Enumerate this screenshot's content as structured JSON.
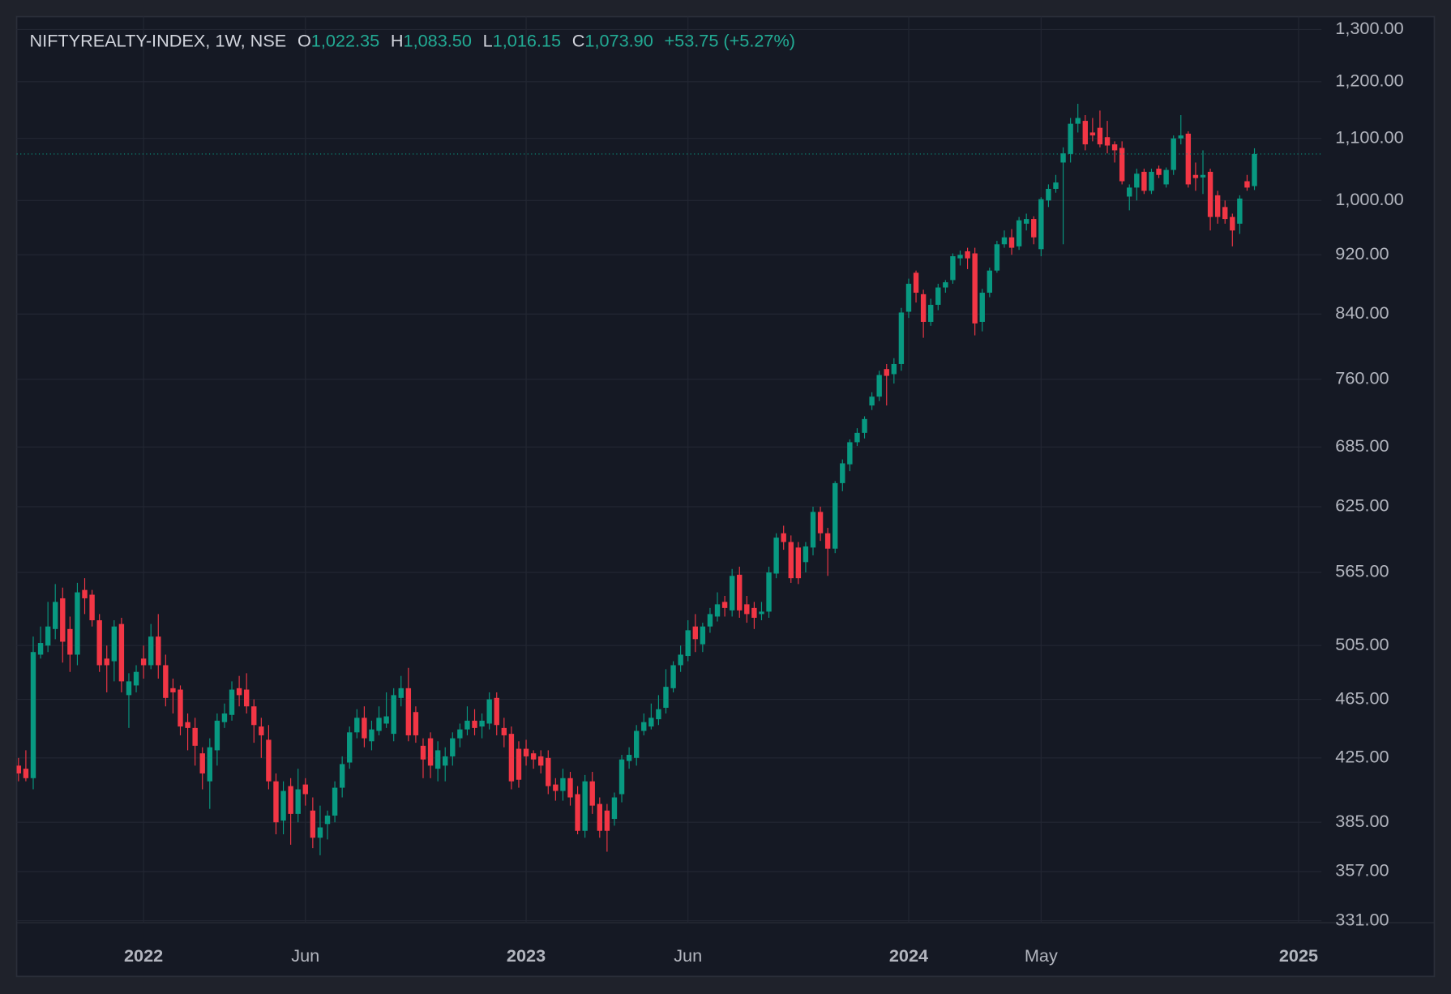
{
  "chart_data": {
    "type": "candlestick",
    "symbol": "NIFTYREALTY-INDEX, 1W, NSE",
    "ohlc": [
      {
        "label": "O",
        "value": "1,022.35"
      },
      {
        "label": "H",
        "value": "1,083.50"
      },
      {
        "label": "L",
        "value": "1,016.15"
      },
      {
        "label": "C",
        "value": "1,073.90"
      }
    ],
    "change": "+53.75 (+5.27%)",
    "up_color": "#089981",
    "down_color": "#f23645",
    "log_scale": true,
    "grid": true,
    "ylim": [
      330,
      1326
    ],
    "yticks": [
      {
        "value": 331,
        "label": "331.00"
      },
      {
        "value": 357,
        "label": "357.00"
      },
      {
        "value": 385,
        "label": "385.00"
      },
      {
        "value": 425,
        "label": "425.00"
      },
      {
        "value": 465,
        "label": "465.00"
      },
      {
        "value": 505,
        "label": "505.00"
      },
      {
        "value": 565,
        "label": "565.00"
      },
      {
        "value": 625,
        "label": "625.00"
      },
      {
        "value": 685,
        "label": "685.00"
      },
      {
        "value": 760,
        "label": "760.00"
      },
      {
        "value": 840,
        "label": "840.00"
      },
      {
        "value": 920,
        "label": "920.00"
      },
      {
        "value": 1000,
        "label": "1,000.00"
      },
      {
        "value": 1100,
        "label": "1,100.00"
      },
      {
        "value": 1200,
        "label": "1,200.00"
      },
      {
        "value": 1300,
        "label": "1,300.00"
      }
    ],
    "categories": [
      null,
      null,
      null,
      null,
      null,
      null,
      null,
      null,
      null,
      null,
      null,
      null,
      null,
      null,
      null,
      null,
      null,
      "2022",
      null,
      null,
      null,
      null,
      null,
      null,
      null,
      null,
      null,
      null,
      null,
      null,
      null,
      null,
      null,
      null,
      null,
      null,
      null,
      null,
      null,
      "Jun",
      null,
      null,
      null,
      null,
      null,
      null,
      null,
      null,
      null,
      null,
      null,
      null,
      null,
      null,
      null,
      null,
      null,
      null,
      null,
      null,
      null,
      null,
      null,
      null,
      null,
      null,
      null,
      null,
      null,
      "2023",
      null,
      null,
      null,
      null,
      null,
      null,
      null,
      null,
      null,
      null,
      null,
      null,
      null,
      null,
      null,
      null,
      null,
      null,
      null,
      null,
      null,
      "Jun",
      null,
      null,
      null,
      null,
      null,
      null,
      null,
      null,
      null,
      null,
      null,
      null,
      null,
      null,
      null,
      null,
      null,
      null,
      null,
      null,
      null,
      null,
      null,
      null,
      null,
      null,
      null,
      null,
      null,
      "2024",
      null,
      null,
      null,
      null,
      null,
      null,
      null,
      null,
      null,
      null,
      null,
      null,
      null,
      null,
      null,
      null,
      null,
      "May",
      null,
      null,
      null,
      null,
      null,
      null,
      null,
      null,
      null,
      null,
      null,
      null,
      null,
      null,
      null,
      null,
      null,
      null,
      null,
      null,
      null,
      null,
      null,
      null,
      null,
      null,
      null,
      null,
      null,
      null,
      null,
      null,
      null,
      null,
      "2025",
      null,
      null,
      null
    ],
    "open": [
      420,
      418,
      412,
      498,
      505,
      518,
      543,
      518,
      498,
      550,
      546,
      525,
      495,
      493,
      522,
      468,
      475,
      495,
      490,
      512,
      490,
      473,
      472,
      449,
      445,
      428,
      410,
      430,
      449,
      454,
      473,
      472,
      460,
      446,
      437,
      410,
      386,
      407,
      390,
      408,
      392,
      376,
      384,
      389,
      406,
      422,
      442,
      452,
      436,
      443,
      448,
      441,
      466,
      473,
      456,
      433,
      438,
      418,
      420,
      426,
      438,
      444,
      450,
      446,
      448,
      466,
      445,
      441,
      431,
      431,
      428,
      426,
      425,
      408,
      404,
      412,
      402,
      380,
      410,
      396,
      392,
      387,
      402,
      423,
      425,
      443,
      446,
      451,
      459,
      473,
      490,
      497,
      520,
      506,
      520,
      528,
      540,
      533,
      563,
      538,
      535,
      530,
      532,
      564,
      600,
      592,
      587,
      574,
      587,
      620,
      600,
      586,
      648,
      667,
      690,
      700,
      730,
      740,
      772,
      766,
      778,
      843,
      895,
      866,
      830,
      852,
      875,
      885,
      915,
      925,
      922,
      830,
      868,
      898,
      935,
      945,
      932,
      965,
      972,
      928,
      1000,
      1018,
      1060,
      1074,
      1125,
      1130,
      1110,
      1118,
      1102,
      1090,
      1084,
      1006,
      1020,
      1045,
      1015,
      1050,
      1025,
      1048,
      1100,
      1108,
      1040,
      1036,
      1045,
      1008,
      990,
      975,
      965,
      1030,
      1022.35,
      null,
      null,
      null,
      null,
      null,
      null,
      null,
      null,
      null
    ],
    "high": [
      425,
      430,
      512,
      520,
      540,
      555,
      552,
      528,
      556,
      560,
      550,
      530,
      505,
      525,
      527,
      484,
      490,
      505,
      522,
      530,
      498,
      480,
      475,
      455,
      452,
      432,
      438,
      455,
      462,
      478,
      482,
      484,
      465,
      452,
      447,
      415,
      410,
      412,
      418,
      412,
      400,
      395,
      392,
      410,
      426,
      446,
      458,
      460,
      450,
      460,
      470,
      473,
      482,
      488,
      460,
      438,
      442,
      436,
      432,
      442,
      448,
      460,
      458,
      455,
      470,
      470,
      452,
      446,
      436,
      437,
      430,
      430,
      430,
      412,
      418,
      416,
      407,
      414,
      416,
      400,
      396,
      403,
      427,
      432,
      447,
      455,
      462,
      468,
      487,
      493,
      505,
      525,
      530,
      523,
      535,
      548,
      545,
      568,
      570,
      545,
      540,
      540,
      570,
      600,
      607,
      598,
      592,
      592,
      625,
      625,
      605,
      650,
      672,
      693,
      705,
      718,
      745,
      770,
      778,
      785,
      848,
      887,
      898,
      872,
      860,
      880,
      885,
      922,
      926,
      930,
      930,
      873,
      902,
      940,
      955,
      957,
      975,
      980,
      976,
      1005,
      1025,
      1040,
      1085,
      1135,
      1160,
      1140,
      1135,
      1148,
      1130,
      1095,
      1095,
      1025,
      1050,
      1050,
      1050,
      1055,
      1052,
      1105,
      1140,
      1112,
      1060,
      1080,
      1050,
      1015,
      1000,
      980,
      1008,
      1040,
      1083.5,
      null,
      null,
      null,
      null,
      null,
      null,
      null,
      null,
      null
    ],
    "low": [
      410,
      410,
      405,
      495,
      500,
      510,
      492,
      485,
      490,
      530,
      520,
      485,
      470,
      478,
      470,
      445,
      470,
      480,
      487,
      480,
      460,
      455,
      440,
      430,
      420,
      405,
      393,
      420,
      445,
      450,
      460,
      455,
      435,
      425,
      405,
      378,
      378,
      372,
      385,
      395,
      370,
      366,
      375,
      385,
      400,
      418,
      438,
      432,
      430,
      440,
      445,
      436,
      460,
      436,
      435,
      412,
      412,
      410,
      410,
      420,
      432,
      440,
      440,
      438,
      444,
      440,
      432,
      405,
      406,
      420,
      418,
      415,
      402,
      398,
      398,
      395,
      378,
      376,
      390,
      376,
      368,
      383,
      397,
      418,
      420,
      440,
      444,
      447,
      455,
      470,
      485,
      493,
      500,
      500,
      515,
      524,
      528,
      528,
      527,
      523,
      518,
      525,
      527,
      560,
      585,
      556,
      555,
      565,
      580,
      593,
      562,
      582,
      640,
      660,
      686,
      694,
      725,
      735,
      730,
      755,
      770,
      835,
      855,
      810,
      825,
      845,
      868,
      880,
      905,
      900,
      813,
      818,
      862,
      895,
      930,
      920,
      927,
      955,
      935,
      918,
      990,
      1012,
      935,
      1060,
      1110,
      1080,
      1095,
      1085,
      1075,
      1060,
      1025,
      985,
      1000,
      1010,
      1010,
      1035,
      1020,
      1040,
      1090,
      1020,
      1015,
      1010,
      955,
      965,
      965,
      932,
      950,
      1015,
      1016.15,
      null,
      null,
      null,
      null,
      null,
      null,
      null,
      null,
      null
    ],
    "close": [
      415,
      412,
      500,
      507,
      520,
      540,
      508,
      498,
      548,
      543,
      525,
      490,
      490,
      520,
      478,
      478,
      485,
      490,
      512,
      490,
      466,
      470,
      446,
      445,
      433,
      415,
      432,
      450,
      455,
      472,
      468,
      460,
      447,
      440,
      410,
      385,
      404,
      390,
      405,
      402,
      376,
      382,
      389,
      406,
      421,
      442,
      452,
      438,
      444,
      452,
      453,
      468,
      473,
      440,
      440,
      424,
      420,
      430,
      426,
      438,
      444,
      450,
      445,
      450,
      465,
      447,
      440,
      410,
      411,
      426,
      424,
      420,
      407,
      404,
      412,
      400,
      380,
      410,
      395,
      380,
      380,
      400,
      424,
      427,
      443,
      449,
      452,
      458,
      474,
      490,
      498,
      517,
      510,
      520,
      530,
      538,
      535,
      562,
      533,
      530,
      527,
      532,
      565,
      596,
      592,
      560,
      560,
      588,
      620,
      600,
      586,
      648,
      668,
      690,
      700,
      715,
      740,
      765,
      764,
      778,
      842,
      880,
      868,
      830,
      852,
      875,
      882,
      918,
      920,
      915,
      828,
      868,
      898,
      935,
      945,
      930,
      970,
      972,
      945,
      1002,
      1018,
      1028,
      1075,
      1125,
      1135,
      1090,
      1105,
      1090,
      1088,
      1080,
      1030,
      1020,
      1042,
      1015,
      1045,
      1040,
      1048,
      1100,
      1105,
      1025,
      1035,
      1040,
      975,
      975,
      972,
      955,
      1003,
      1020,
      1073.9,
      null,
      null,
      null,
      null,
      null,
      null,
      null,
      null,
      null
    ]
  }
}
